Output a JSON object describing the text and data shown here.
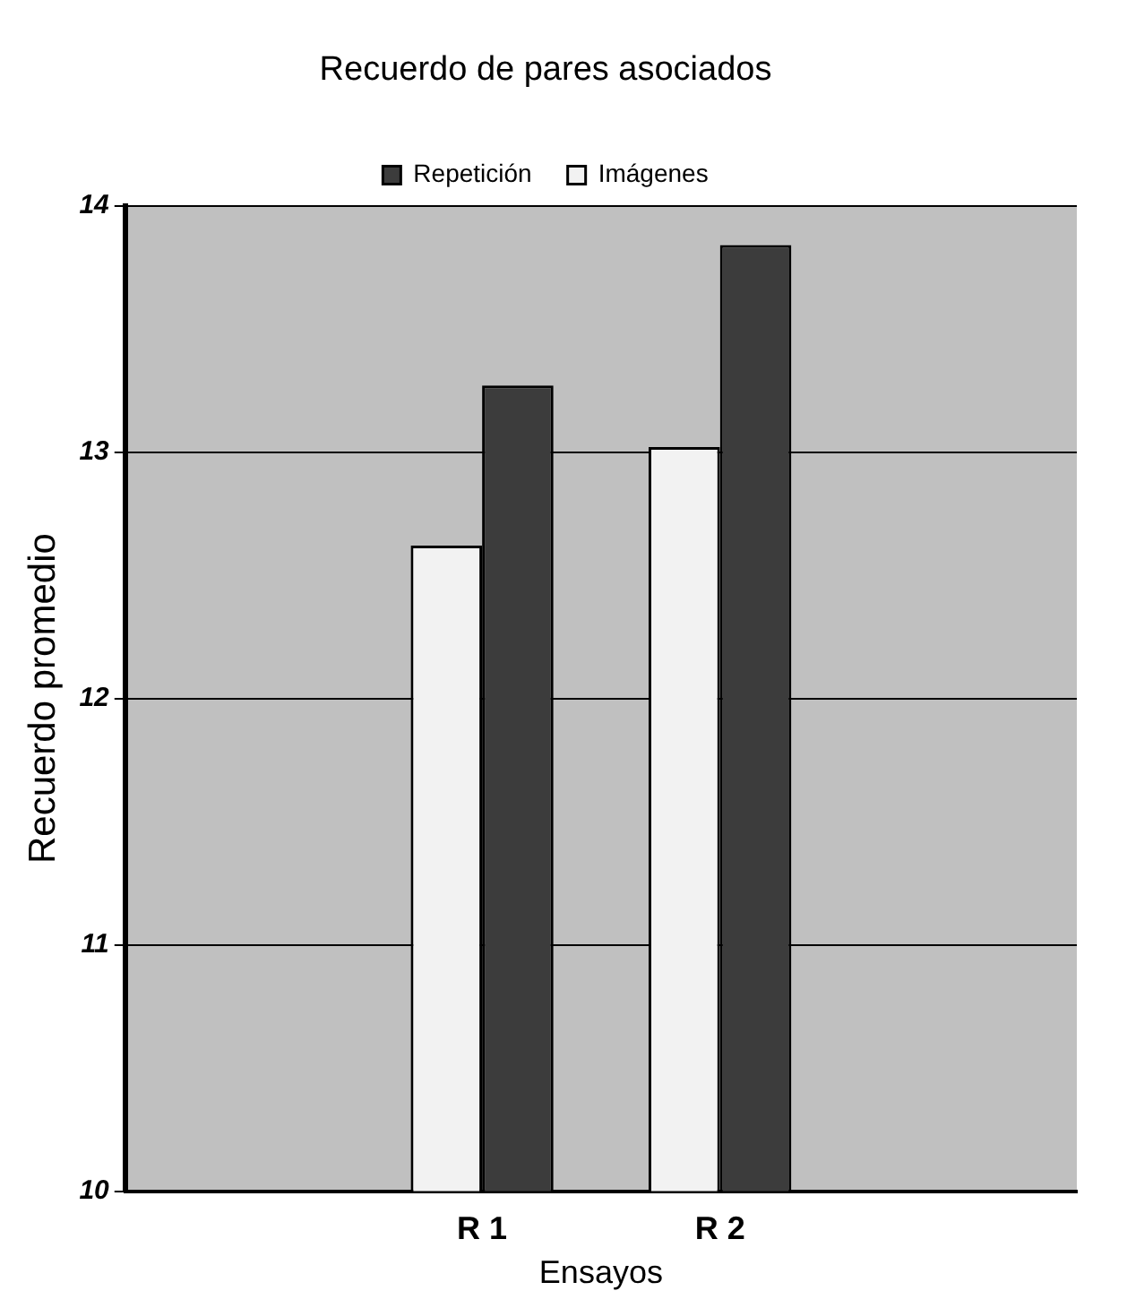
{
  "chart_data": {
    "type": "bar",
    "title": "Recuerdo de pares asociados",
    "xlabel": "Ensayos",
    "ylabel": "Recuerdo promedio",
    "categories": [
      null,
      "R 1",
      "R 2",
      null
    ],
    "series": [
      {
        "name": "Imágenes",
        "color": "#f2f2f2",
        "values": [
          null,
          12.62,
          13.02,
          null
        ]
      },
      {
        "name": "Repetición",
        "color": "#3c3c3c",
        "values": [
          null,
          13.27,
          13.84,
          null
        ]
      }
    ],
    "ylim": [
      10,
      14
    ],
    "yticks": [
      10,
      11,
      12,
      13,
      14
    ],
    "grid": "y",
    "legend": "top"
  }
}
